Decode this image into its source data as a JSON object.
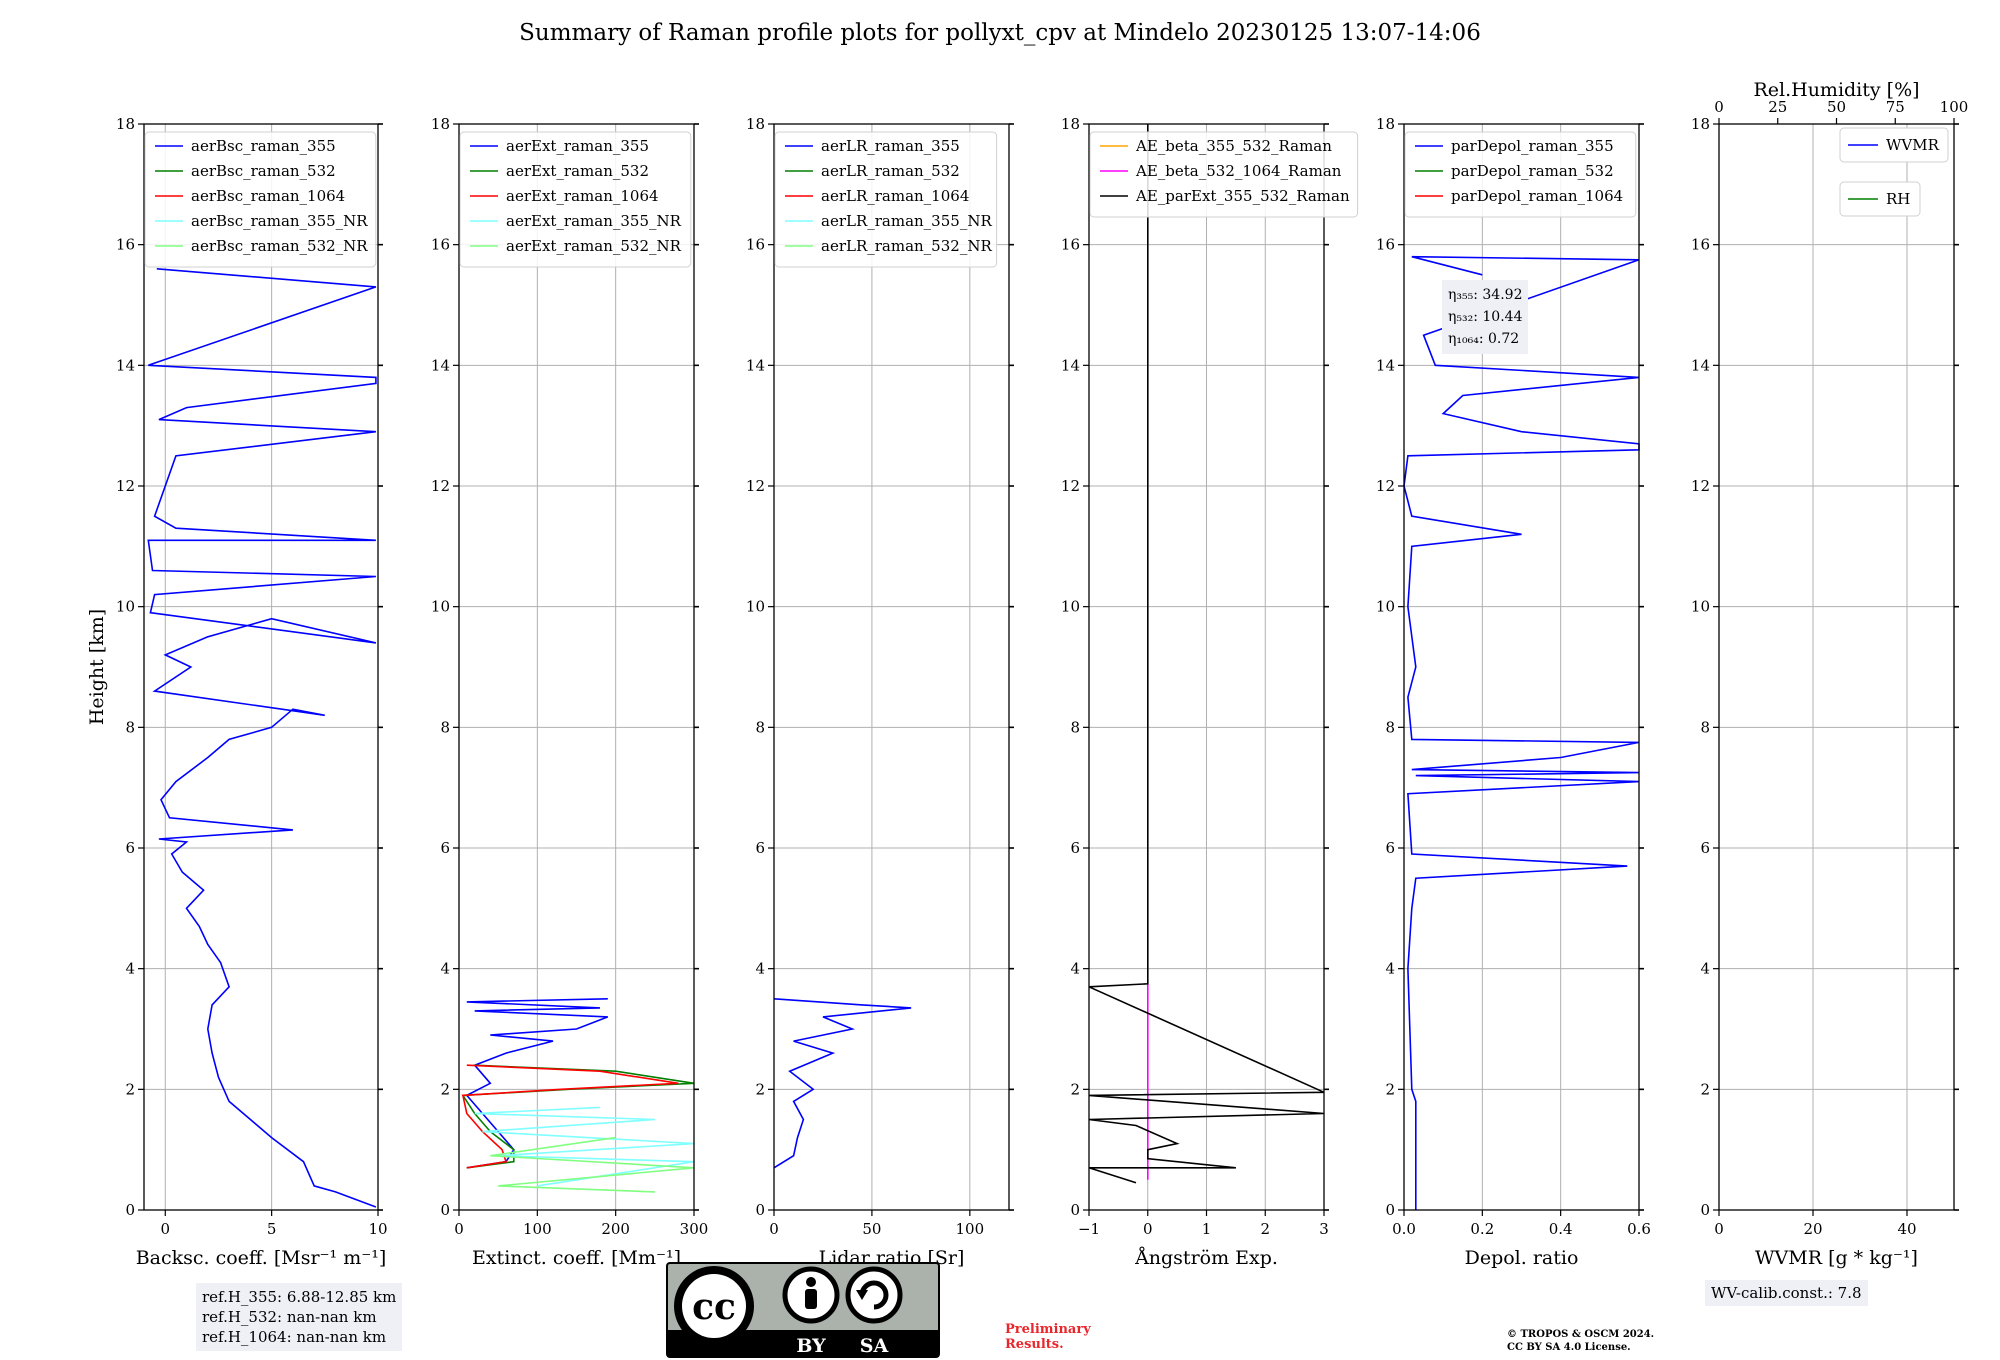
{
  "title": "Summary of Raman profile plots for pollyxt_cpv at Mindelo 20230125 13:07-14:06",
  "ylabel": "Height [km]",
  "colors": {
    "c355": "#0000ff",
    "c532": "#008000",
    "c1064": "#ff0000",
    "c355nr": "#7fffff",
    "c532nr": "#80ff80",
    "orange": "#ffa500",
    "magenta": "#ff00ff",
    "black": "#000000",
    "grid": "#b0b0b0"
  },
  "chart_data": [
    {
      "type": "line",
      "xlabel": "Backsc. coeff. [Msr⁻¹ m⁻¹]",
      "xlim": [
        -1,
        10
      ],
      "ylim": [
        0,
        18
      ],
      "xticks": [
        0,
        5,
        10
      ],
      "yticks": [
        0,
        2,
        4,
        6,
        8,
        10,
        12,
        14,
        16,
        18
      ],
      "legend": "upper-left",
      "series": [
        {
          "name": "aerBsc_raman_355",
          "color": "#0000ff",
          "x": [
            9.9,
            8,
            7,
            6.5,
            5,
            4,
            3,
            2.5,
            2.2,
            2.0,
            2.2,
            3,
            2.6,
            2.0,
            1.6,
            1.0,
            1.8,
            0.8,
            0.3,
            1.0,
            -0.3,
            6,
            0.2,
            -0.2,
            0.5,
            2,
            3,
            5,
            6,
            7.5,
            -0.5,
            1.2,
            0.0,
            2,
            5,
            9.9,
            -0.7,
            -0.5,
            9.9,
            -0.6,
            -0.8,
            9.9,
            0.5,
            -0.5,
            0.5,
            9.9,
            -0.3,
            1,
            9.9,
            9.9,
            -0.8,
            9.9,
            -0.4
          ],
          "y": [
            0.05,
            0.3,
            0.4,
            0.8,
            1.2,
            1.5,
            1.8,
            2.2,
            2.6,
            3.0,
            3.4,
            3.7,
            4.1,
            4.4,
            4.7,
            5.0,
            5.3,
            5.6,
            5.9,
            6.1,
            6.15,
            6.3,
            6.5,
            6.8,
            7.1,
            7.5,
            7.8,
            8.0,
            8.3,
            8.2,
            8.6,
            9.0,
            9.2,
            9.5,
            9.8,
            9.4,
            9.9,
            10.2,
            10.5,
            10.6,
            11.1,
            11.1,
            11.3,
            11.5,
            12.5,
            12.9,
            13.1,
            13.3,
            13.7,
            13.8,
            14.0,
            15.3,
            15.6
          ]
        },
        {
          "name": "aerBsc_raman_532",
          "color": "#008000",
          "x": [],
          "y": []
        },
        {
          "name": "aerBsc_raman_1064",
          "color": "#ff0000",
          "x": [],
          "y": []
        },
        {
          "name": "aerBsc_raman_355_NR",
          "color": "#7fffff",
          "x": [],
          "y": []
        },
        {
          "name": "aerBsc_raman_532_NR",
          "color": "#80ff80",
          "x": [],
          "y": []
        }
      ]
    },
    {
      "type": "line",
      "xlabel": "Extinct. coeff. [Mm⁻¹]",
      "xlim": [
        0,
        300
      ],
      "ylim": [
        0,
        18
      ],
      "xticks": [
        0,
        100,
        200,
        300
      ],
      "yticks": [
        0,
        2,
        4,
        6,
        8,
        10,
        12,
        14,
        16,
        18
      ],
      "legend": "upper-left",
      "series": [
        {
          "name": "aerExt_raman_355",
          "color": "#0000ff",
          "x": [
            10,
            60,
            70,
            50,
            30,
            10,
            40,
            20,
            60,
            120,
            40,
            150,
            190,
            20,
            180,
            10,
            190
          ],
          "y": [
            0.7,
            0.8,
            1.0,
            1.3,
            1.6,
            1.9,
            2.1,
            2.4,
            2.6,
            2.8,
            2.9,
            3.0,
            3.2,
            3.3,
            3.35,
            3.45,
            3.5
          ]
        },
        {
          "name": "aerExt_raman_532",
          "color": "#008000",
          "x": [
            10,
            70,
            70,
            40,
            20,
            5,
            140,
            300,
            200,
            20
          ],
          "y": [
            0.7,
            0.8,
            1.0,
            1.3,
            1.6,
            1.9,
            2.0,
            2.1,
            2.3,
            2.4
          ]
        },
        {
          "name": "aerExt_raman_1064",
          "color": "#ff0000",
          "x": [
            10,
            60,
            55,
            30,
            10,
            5,
            130,
            280,
            180,
            10
          ],
          "y": [
            0.7,
            0.8,
            1.0,
            1.3,
            1.6,
            1.9,
            2.0,
            2.1,
            2.3,
            2.4
          ]
        },
        {
          "name": "aerExt_raman_355_NR",
          "color": "#7fffff",
          "x": [
            100,
            300,
            50,
            300,
            30,
            250,
            20,
            180
          ],
          "y": [
            0.4,
            0.8,
            0.9,
            1.1,
            1.3,
            1.5,
            1.6,
            1.7
          ]
        },
        {
          "name": "aerExt_raman_532_NR",
          "color": "#80ff80",
          "x": [
            250,
            50,
            300,
            40,
            200
          ],
          "y": [
            0.3,
            0.4,
            0.7,
            0.9,
            1.2
          ]
        }
      ]
    },
    {
      "type": "line",
      "xlabel": "Lidar ratio [Sr]",
      "xlim": [
        0,
        120
      ],
      "ylim": [
        0,
        18
      ],
      "xticks": [
        0,
        50,
        100
      ],
      "yticks": [
        0,
        2,
        4,
        6,
        8,
        10,
        12,
        14,
        16,
        18
      ],
      "legend": "upper-left",
      "series": [
        {
          "name": "aerLR_raman_355",
          "color": "#0000ff",
          "x": [
            0,
            10,
            12,
            15,
            10,
            20,
            8,
            30,
            10,
            40,
            25,
            70,
            45,
            0
          ],
          "y": [
            0.7,
            0.9,
            1.2,
            1.5,
            1.8,
            2.0,
            2.3,
            2.6,
            2.8,
            3.0,
            3.2,
            3.35,
            3.4,
            3.5
          ]
        },
        {
          "name": "aerLR_raman_532",
          "color": "#008000",
          "x": [],
          "y": []
        },
        {
          "name": "aerLR_raman_1064",
          "color": "#ff0000",
          "x": [],
          "y": []
        },
        {
          "name": "aerLR_raman_355_NR",
          "color": "#7fffff",
          "x": [],
          "y": []
        },
        {
          "name": "aerLR_raman_532_NR",
          "color": "#80ff80",
          "x": [],
          "y": []
        }
      ]
    },
    {
      "type": "line",
      "xlabel": "Ångström Exp.",
      "xlim": [
        -1,
        3
      ],
      "ylim": [
        0,
        18
      ],
      "xticks": [
        -1,
        0,
        1,
        2,
        3
      ],
      "yticks": [
        0,
        2,
        4,
        6,
        8,
        10,
        12,
        14,
        16,
        18
      ],
      "legend": "upper-left",
      "series": [
        {
          "name": "AE_beta_355_532_Raman",
          "color": "#ffa500",
          "x": [],
          "y": []
        },
        {
          "name": "AE_beta_532_1064_Raman",
          "color": "#ff00ff",
          "x": [
            0,
            0
          ],
          "y": [
            0.5,
            3.75
          ]
        },
        {
          "name": "AE_parExt_355_532_Raman",
          "color": "#000000",
          "x": [
            -0.2,
            -1,
            1.5,
            0,
            0,
            0.5,
            -0.2,
            -1,
            3,
            -1,
            3,
            -1,
            0,
            0,
            0
          ],
          "y": [
            0.45,
            0.7,
            0.7,
            0.85,
            1.0,
            1.1,
            1.4,
            1.5,
            1.6,
            1.9,
            1.95,
            3.7,
            3.75,
            16.5,
            18
          ]
        }
      ]
    },
    {
      "type": "line",
      "xlabel": "Depol. ratio",
      "xlim": [
        0,
        0.6
      ],
      "ylim": [
        0,
        18
      ],
      "xticks": [
        0.0,
        0.2,
        0.4,
        0.6
      ],
      "yticks": [
        0,
        2,
        4,
        6,
        8,
        10,
        12,
        14,
        16,
        18
      ],
      "legend": "upper-left",
      "series": [
        {
          "name": "parDepol_raman_355",
          "color": "#0000ff",
          "x": [
            0.03,
            0.03,
            0.02,
            0.01,
            0.02,
            0.03,
            0.57,
            0.02,
            0.01,
            0.6,
            0.03,
            0.6,
            0.02,
            0.4,
            0.6,
            0.02,
            0.01,
            0.03,
            0.01,
            0.02,
            0.3,
            0.02,
            0.0,
            0.01,
            0.6,
            0.6,
            0.3,
            0.1,
            0.15,
            0.6,
            0.08,
            0.05,
            0.6,
            0.02,
            0.2
          ],
          "y": [
            0.0,
            1.8,
            2.0,
            4.0,
            5.0,
            5.5,
            5.7,
            5.9,
            6.9,
            7.1,
            7.2,
            7.25,
            7.3,
            7.5,
            7.75,
            7.8,
            8.5,
            9.0,
            10.0,
            11.0,
            11.2,
            11.5,
            12.0,
            12.5,
            12.6,
            12.7,
            12.9,
            13.2,
            13.5,
            13.8,
            14.0,
            14.5,
            15.75,
            15.8,
            15.5
          ]
        },
        {
          "name": "parDepol_raman_532",
          "color": "#008000",
          "x": [],
          "y": []
        },
        {
          "name": "parDepol_raman_1064",
          "color": "#ff0000",
          "x": [],
          "y": []
        }
      ]
    },
    {
      "type": "line",
      "xlabel": "WVMR [g * kg⁻¹]",
      "x2label": "Rel.Humidity [%]",
      "xlim": [
        0,
        50
      ],
      "x2lim": [
        0,
        100
      ],
      "ylim": [
        0,
        18
      ],
      "xticks": [
        0,
        20,
        40
      ],
      "x2ticks": [
        0,
        25,
        50,
        75,
        100
      ],
      "yticks": [
        0,
        2,
        4,
        6,
        8,
        10,
        12,
        14,
        16,
        18
      ],
      "legend": "upper-right",
      "series": [
        {
          "name": "WVMR",
          "color": "#0000ff",
          "x": [],
          "y": []
        },
        {
          "name": "RH",
          "color": "#008000",
          "x": [],
          "y": []
        }
      ]
    }
  ],
  "eta": {
    "e355": "η₃₅₅: 34.92",
    "e532": "η₅₃₂: 10.44",
    "e1064": "η₁₀₆₄: 0.72"
  },
  "refH": {
    "r355": "ref.H_355: 6.88-12.85 km",
    "r532": "ref.H_532: nan-nan km",
    "r1064": "ref.H_1064: nan-nan km"
  },
  "wv_calib": "WV-calib.const.: 7.8",
  "preliminary": [
    "Preliminary",
    "Results."
  ],
  "copyright": [
    "© TROPOS & OSCM 2024.",
    "CC BY SA 4.0 License."
  ],
  "license_badge": {
    "cc": "cc",
    "by": "BY",
    "sa": "SA"
  }
}
